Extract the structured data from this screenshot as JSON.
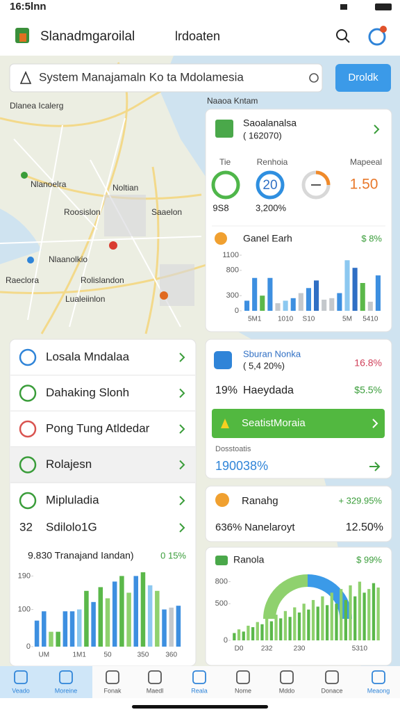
{
  "status": {
    "time": "16:5lnn"
  },
  "header": {
    "title": "Slanadmgaroilal",
    "subtitle": "lrdoaten"
  },
  "search": {
    "placeholder": "System Manajamaln Ko ta Mdolamesia",
    "button": "Droldk"
  },
  "map": {
    "labels": [
      "Dlanea Icalerg",
      "Naaoa Kntam",
      "Nlanoelra",
      "Noltian",
      "Roosislon",
      "Saaelon",
      "Nlaanolkio",
      "Raeclora",
      "Rolislandon",
      "Lualeiinlon"
    ]
  },
  "summary_card": {
    "title": "Saoalanalsa",
    "subtitle": "( 162070)",
    "metrics": [
      {
        "label": "Tie",
        "value": "9S8"
      },
      {
        "label": "Renhoia",
        "ring": "20",
        "value": "3,200%"
      },
      {
        "label": "Mapeeal",
        "value": "1.50"
      }
    ]
  },
  "chart_data": [
    {
      "type": "bar",
      "title": "Ganel Earh",
      "change": "$ 8%",
      "categories": [
        null,
        "5M1",
        null,
        null,
        null,
        "1010",
        null,
        null,
        "S10",
        null,
        null,
        null,
        null,
        "5M",
        null,
        null,
        "5410",
        null
      ],
      "values": [
        200,
        650,
        300,
        650,
        150,
        200,
        250,
        350,
        450,
        600,
        220,
        250,
        350,
        1000,
        850,
        550,
        180,
        700
      ],
      "colors": [
        "#3d8fe0",
        "#3d8fe0",
        "#5bb84a",
        "#3d8fe0",
        "#c4c8cc",
        "#8cc8f0",
        "#3d8fe0",
        "#c4c8cc",
        "#3d8fe0",
        "#2f6fc4",
        "#c4c8cc",
        "#c4c8cc",
        "#3d8fe0",
        "#8cc8f0",
        "#2f6fc4",
        "#5bb84a",
        "#c4c8cc",
        "#3d8fe0"
      ],
      "ylim": [
        0,
        1100
      ],
      "yticks": [
        0,
        300,
        800,
        1100
      ]
    },
    {
      "type": "bar",
      "title": "9.830 Tranajand Iandan)",
      "change": "0 15%",
      "categories": [
        null,
        "UM",
        null,
        null,
        null,
        null,
        "1M1",
        null,
        null,
        null,
        "50",
        null,
        null,
        null,
        null,
        "350",
        null,
        null,
        null,
        "360",
        null
      ],
      "values": [
        70,
        95,
        40,
        40,
        95,
        95,
        100,
        150,
        120,
        160,
        130,
        175,
        190,
        145,
        190,
        200,
        165,
        150,
        100,
        105,
        110
      ],
      "colors": [
        "#3d8fe0",
        "#3d8fe0",
        "#8fd16e",
        "#5bb84a",
        "#3d8fe0",
        "#3d8fe0",
        "#8cc8f0",
        "#5bb84a",
        "#3d8fe0",
        "#5bb84a",
        "#8fd16e",
        "#3d8fe0",
        "#5bb84a",
        "#8fd16e",
        "#3d8fe0",
        "#5bb84a",
        "#8cc8f0",
        "#8fd16e",
        "#3d8fe0",
        "#c4c8cc",
        "#3d8fe0"
      ],
      "ylim": [
        0,
        230
      ],
      "yticks": [
        0,
        100,
        190
      ]
    },
    {
      "type": "bar",
      "title": "Ranola",
      "change": "$ 99%",
      "categories": [
        null,
        "D0",
        null,
        null,
        null,
        null,
        null,
        "232",
        null,
        null,
        null,
        null,
        null,
        null,
        "230",
        null,
        null,
        null,
        null,
        null,
        null,
        null,
        null,
        null,
        null,
        null,
        null,
        "5310",
        null,
        null,
        null,
        null
      ],
      "values": [
        100,
        150,
        120,
        200,
        180,
        250,
        220,
        300,
        260,
        350,
        300,
        400,
        320,
        450,
        380,
        500,
        420,
        550,
        460,
        600,
        480,
        650,
        500,
        700,
        550,
        750,
        600,
        800,
        650,
        700,
        780,
        720
      ],
      "colors": [
        "#5bb84a",
        "#8fd16e"
      ],
      "ylim": [
        0,
        900
      ],
      "yticks": [
        0,
        500,
        800
      ]
    }
  ],
  "status_card": {
    "title": "Sburan Nonka",
    "subtitle": "( 5,4 20%)",
    "change": "16.8%",
    "row": {
      "value": "19%",
      "label": "Haeydada",
      "change": "$5.5%"
    },
    "button": "SeatistMoraia",
    "caption": "Dosstoatis",
    "total": "190038%"
  },
  "rank_card": {
    "title": "Ranahg",
    "change": "+ 329.95%",
    "row": {
      "value": "636%",
      "label": "Nanelaroyt",
      "change": "12.50%"
    }
  },
  "menu": {
    "items": [
      "Losala Mndalaa",
      "Dahaking Slonh",
      "Pong Tung Atldedar",
      "Rolajesn",
      "Mipluladia"
    ],
    "extra": {
      "value": "32",
      "label": "Sdilolo1G"
    }
  },
  "nav": {
    "items": [
      "Veado",
      "Moreine",
      "Fonak",
      "Maedl",
      "Reala",
      "Nome",
      "Mddo",
      "Donace",
      "Meaong"
    ]
  }
}
